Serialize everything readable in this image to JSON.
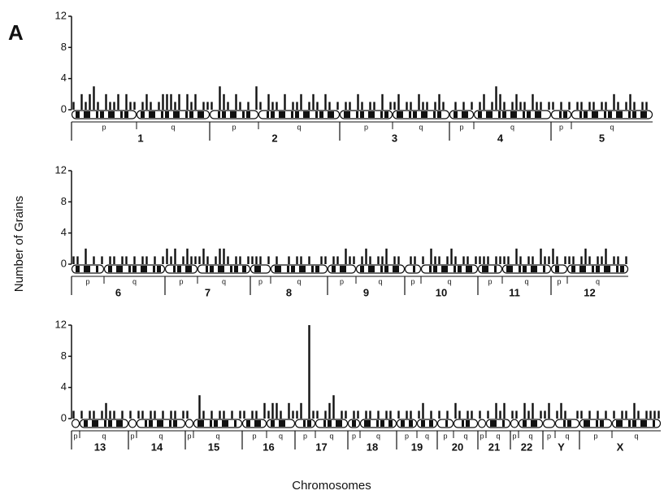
{
  "figure": {
    "label": "A",
    "y_label": "Number of Grains",
    "x_label": "Chromosomes",
    "arms": {
      "p": "p",
      "q": "q"
    }
  },
  "chart_data": [
    {
      "type": "bar",
      "ylim": [
        0,
        12
      ],
      "yticks": [
        0,
        4,
        8,
        12
      ],
      "color": "#111111",
      "chromosomes": [
        {
          "name": "1",
          "p": [
            1,
            0,
            2,
            1,
            2,
            3,
            1,
            0,
            2,
            1,
            1,
            2,
            0,
            2,
            1,
            1
          ],
          "q": [
            0,
            1,
            2,
            1,
            0,
            1,
            2,
            2,
            2,
            1,
            2,
            0,
            2,
            1,
            2,
            0,
            1,
            1
          ]
        },
        {
          "name": "2",
          "p": [
            1,
            0,
            3,
            2,
            1,
            0,
            2,
            1,
            0,
            1,
            0,
            3
          ],
          "q": [
            1,
            0,
            2,
            1,
            1,
            0,
            2,
            0,
            1,
            1,
            2,
            0,
            1,
            2,
            1,
            0,
            2,
            1,
            0,
            1
          ]
        },
        {
          "name": "3",
          "p": [
            0,
            1,
            1,
            0,
            2,
            1,
            0,
            1,
            1,
            0,
            2,
            0,
            1
          ],
          "q": [
            1,
            2,
            0,
            1,
            1,
            0,
            2,
            1,
            1,
            0,
            1,
            2,
            1,
            0
          ]
        },
        {
          "name": "4",
          "p": [
            0,
            1,
            0,
            1,
            0,
            1
          ],
          "q": [
            0,
            1,
            2,
            0,
            1,
            3,
            2,
            1,
            0,
            1,
            2,
            1,
            1,
            0,
            2,
            1,
            1,
            0,
            1
          ]
        },
        {
          "name": "5",
          "p": [
            1,
            0,
            1,
            0,
            1
          ],
          "q": [
            0,
            1,
            1,
            0,
            1,
            1,
            0,
            1,
            1,
            0,
            2,
            1,
            0,
            1,
            2,
            1,
            0,
            1,
            1,
            0
          ]
        }
      ]
    },
    {
      "type": "bar",
      "ylim": [
        0,
        12
      ],
      "yticks": [
        0,
        4,
        8,
        12
      ],
      "color": "#111111",
      "chromosomes": [
        {
          "name": "6",
          "p": [
            1,
            1,
            0,
            2,
            0,
            1,
            0,
            1
          ],
          "q": [
            0,
            1,
            1,
            0,
            1,
            1,
            0,
            1,
            0,
            1,
            1,
            0,
            1,
            0,
            1
          ]
        },
        {
          "name": "7",
          "p": [
            2,
            1,
            2,
            0,
            1,
            2,
            1,
            1
          ],
          "q": [
            1,
            2,
            1,
            0,
            1,
            2,
            2,
            1,
            0,
            1,
            1,
            0,
            1
          ]
        },
        {
          "name": "8",
          "p": [
            1,
            1,
            1,
            0,
            1
          ],
          "q": [
            0,
            1,
            0,
            0,
            1,
            0,
            1,
            1,
            0,
            1,
            0,
            0,
            1,
            1
          ]
        },
        {
          "name": "9",
          "p": [
            0,
            1,
            1,
            0,
            2,
            1,
            1
          ],
          "q": [
            0,
            1,
            2,
            1,
            0,
            1,
            1,
            2,
            0,
            1,
            1,
            0
          ]
        },
        {
          "name": "10",
          "p": [
            0,
            1,
            1,
            0
          ],
          "q": [
            1,
            0,
            2,
            1,
            1,
            0,
            1,
            2,
            1,
            0,
            1,
            1,
            0,
            1
          ]
        },
        {
          "name": "11",
          "p": [
            1,
            1,
            1,
            0,
            1,
            1
          ],
          "q": [
            1,
            1,
            0,
            2,
            1,
            0,
            1,
            1,
            0,
            2,
            1,
            1
          ]
        },
        {
          "name": "12",
          "p": [
            2,
            1,
            0,
            1
          ],
          "q": [
            1,
            1,
            0,
            1,
            2,
            1,
            0,
            1,
            1,
            2,
            0,
            1,
            1,
            0,
            1
          ]
        }
      ]
    },
    {
      "type": "bar",
      "ylim": [
        0,
        12
      ],
      "yticks": [
        0,
        4,
        8,
        12
      ],
      "color": "#111111",
      "chromosomes": [
        {
          "name": "13",
          "p": [
            1,
            0
          ],
          "q": [
            1,
            0,
            1,
            1,
            0,
            1,
            2,
            1,
            1,
            0,
            1,
            0
          ]
        },
        {
          "name": "14",
          "p": [
            1,
            0
          ],
          "q": [
            1,
            1,
            0,
            1,
            1,
            0,
            1,
            0,
            1,
            1,
            0,
            1
          ]
        },
        {
          "name": "15",
          "p": [
            1,
            0
          ],
          "q": [
            0,
            3,
            1,
            0,
            1,
            0,
            1,
            1,
            0,
            1,
            0,
            1
          ]
        },
        {
          "name": "16",
          "p": [
            1,
            0,
            1,
            1,
            0,
            2
          ],
          "q": [
            1,
            2,
            2,
            1,
            0,
            2,
            1
          ]
        },
        {
          "name": "17",
          "p": [
            1,
            2,
            0,
            12,
            1
          ],
          "q": [
            1,
            0,
            1,
            2,
            3,
            0,
            1,
            1
          ]
        },
        {
          "name": "18",
          "p": [
            0,
            1,
            1
          ],
          "q": [
            0,
            1,
            1,
            0,
            1,
            0,
            1,
            1,
            0
          ]
        },
        {
          "name": "19",
          "p": [
            1,
            0,
            1,
            1,
            0
          ],
          "q": [
            1,
            2,
            0,
            1,
            0
          ]
        },
        {
          "name": "20",
          "p": [
            1,
            0,
            1,
            0
          ],
          "q": [
            2,
            1,
            0,
            1,
            1,
            0
          ]
        },
        {
          "name": "21",
          "p": [
            1,
            0
          ],
          "q": [
            1,
            0,
            2,
            1,
            2,
            0
          ]
        },
        {
          "name": "22",
          "p": [
            1,
            1
          ],
          "q": [
            0,
            2,
            1,
            2,
            0,
            1
          ]
        },
        {
          "name": "Y",
          "p": [
            1,
            2,
            0
          ],
          "q": [
            1,
            2,
            1,
            0,
            0,
            1
          ]
        },
        {
          "name": "X",
          "p": [
            1,
            0,
            1,
            0,
            1,
            0,
            1,
            0
          ],
          "q": [
            1,
            0,
            1,
            1,
            0,
            2,
            1,
            0,
            1,
            1,
            1,
            1
          ]
        }
      ]
    }
  ]
}
